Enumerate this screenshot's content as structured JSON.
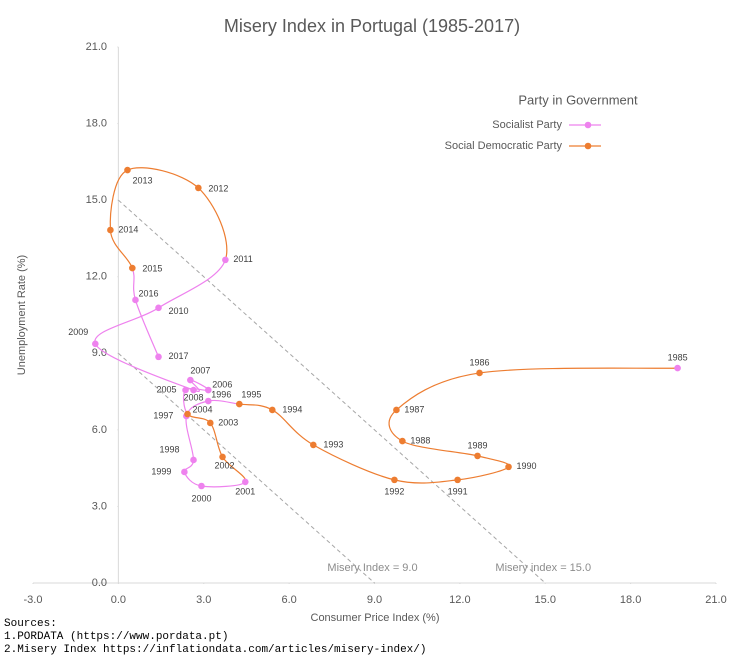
{
  "chart_data": {
    "type": "connected-scatter",
    "title": "Misery Index in Portugal (1985-2017)",
    "x_label": "Consumer Price Index (%)",
    "y_label": "Unemployment Rate (%)",
    "legend_title": "Party in Government",
    "legend": "top-right",
    "series": [
      {
        "name": "Socialist Party",
        "color": "#ee82ee"
      },
      {
        "name": "Social Democratic Party",
        "color": "#ed7d31"
      }
    ],
    "labels": [
      "1985",
      "1986",
      "1987",
      "1988",
      "1989",
      "1990",
      "1991",
      "1992",
      "1993",
      "1994",
      "1995",
      "1996",
      "1997",
      "1998",
      "1999",
      "2000",
      "2001",
      "2002",
      "2003",
      "2004",
      "2005",
      "2006",
      "2007",
      "2008",
      "2009",
      "2010",
      "2011",
      "2012",
      "2013",
      "2014",
      "2015",
      "2016",
      "2017"
    ],
    "x": [
      19.65,
      12.69,
      9.77,
      9.98,
      12.62,
      13.71,
      11.92,
      9.7,
      6.85,
      5.41,
      4.25,
      3.16,
      2.39,
      2.64,
      2.32,
      2.92,
      4.46,
      3.66,
      3.23,
      2.43,
      2.36,
      3.16,
      2.53,
      2.64,
      -0.81,
      1.41,
      3.76,
      2.81,
      0.32,
      -0.28,
      0.49,
      0.6,
      1.41
    ],
    "y": [
      8.42,
      8.23,
      6.78,
      5.56,
      4.98,
      4.55,
      4.04,
      4.04,
      5.41,
      6.78,
      7.01,
      7.13,
      6.54,
      4.82,
      4.35,
      3.8,
      3.96,
      4.94,
      6.27,
      6.62,
      7.56,
      7.56,
      7.95,
      7.56,
      9.37,
      10.78,
      12.66,
      15.48,
      16.18,
      13.83,
      12.34,
      11.09,
      8.86
    ],
    "party": [
      0,
      1,
      1,
      1,
      1,
      1,
      1,
      1,
      1,
      1,
      1,
      0,
      0,
      0,
      0,
      0,
      0,
      1,
      1,
      1,
      0,
      0,
      0,
      0,
      0,
      0,
      0,
      1,
      1,
      1,
      1,
      0,
      0
    ],
    "reference_lines": [
      {
        "value": 9,
        "label": "Misery Index = 9.0"
      },
      {
        "value": 15,
        "label": "Misery index = 15.0"
      }
    ],
    "xlim": [
      -3,
      21
    ],
    "ylim": [
      0,
      21
    ],
    "xticks": [
      {
        "value": -3,
        "label": "-3.0"
      },
      {
        "value": 0,
        "label": "0.0"
      },
      {
        "value": 3,
        "label": "3.0"
      },
      {
        "value": 6,
        "label": "6.0"
      },
      {
        "value": 9,
        "label": "9.0"
      },
      {
        "value": 12,
        "label": "12.0"
      },
      {
        "value": 15,
        "label": "15.0"
      },
      {
        "value": 18,
        "label": "18.0"
      },
      {
        "value": 21,
        "label": "21.0"
      }
    ],
    "yticks": [
      {
        "value": 0,
        "label": "0.0"
      },
      {
        "value": 3,
        "label": "3.0"
      },
      {
        "value": 6,
        "label": "6.0"
      },
      {
        "value": 9,
        "label": "9.0"
      },
      {
        "value": 12,
        "label": "12.0"
      },
      {
        "value": 15,
        "label": "15.0"
      },
      {
        "value": 18,
        "label": "18.0"
      },
      {
        "value": 21,
        "label": "21.0"
      }
    ],
    "sources": [
      "Sources:",
      "1.PORDATA (https://www.pordata.pt)",
      "2.Misery Index https://inflationdata.com/articles/misery-index/)"
    ]
  }
}
